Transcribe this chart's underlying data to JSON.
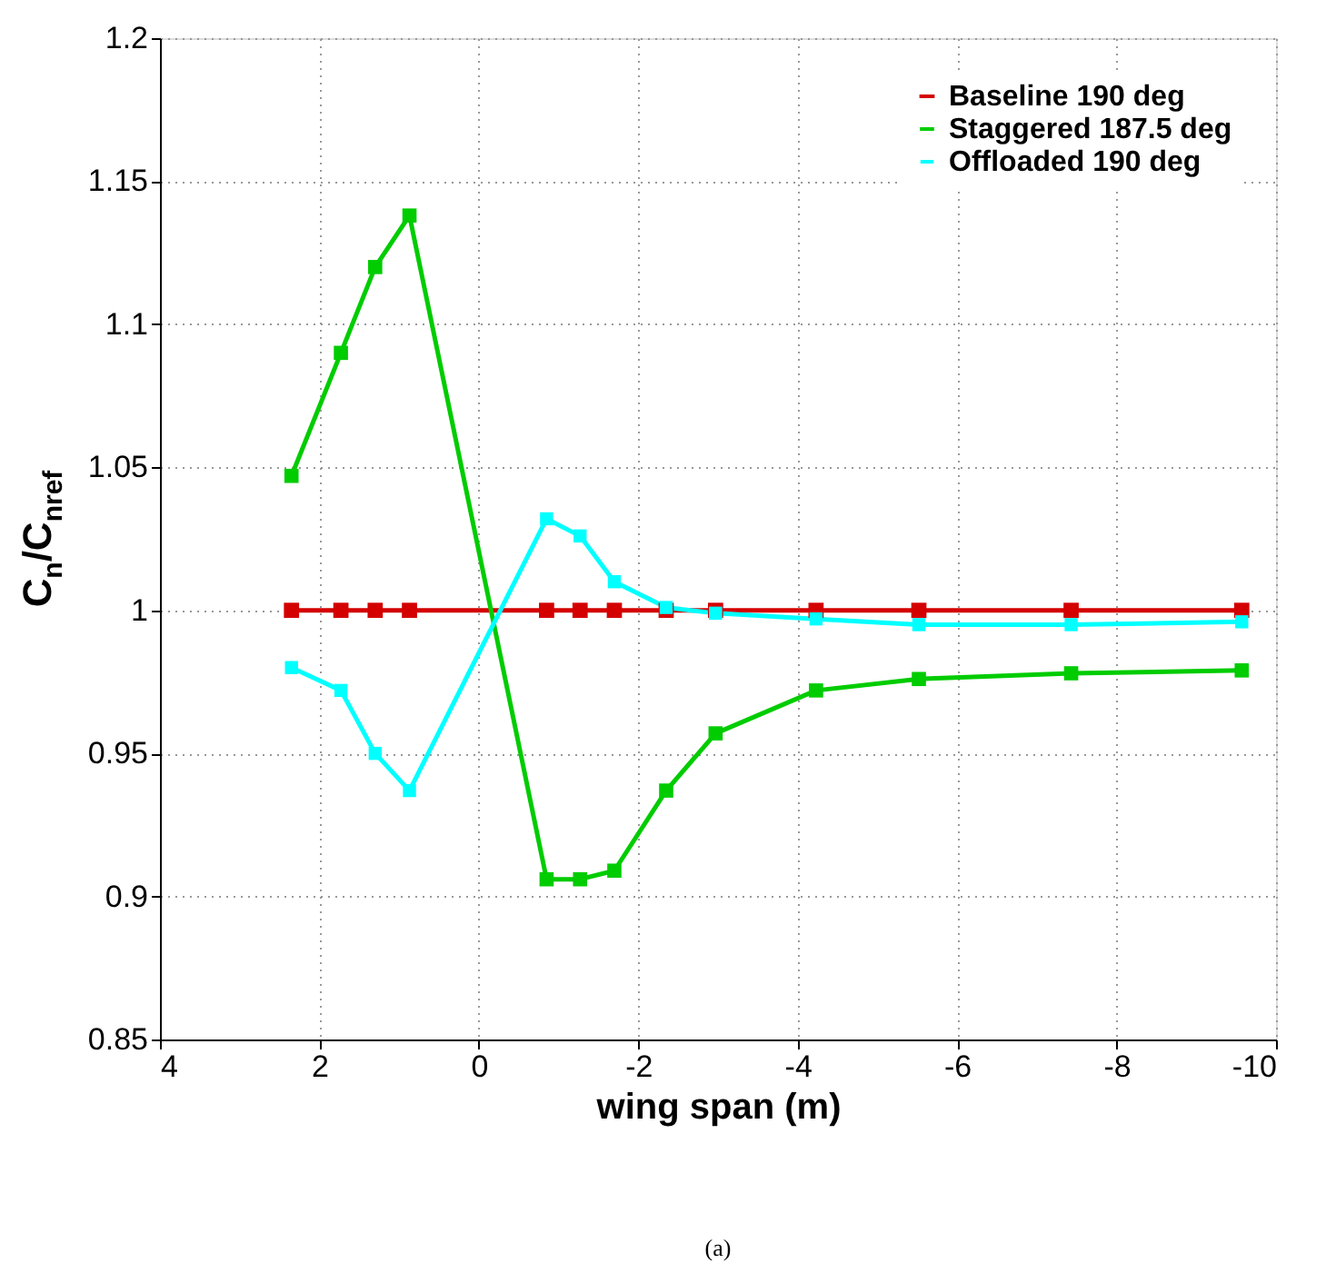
{
  "chart_data": {
    "type": "line",
    "xlabel": "wing span (m)",
    "ylabel": "C$_{n}$/C$_{nref}$",
    "x": [
      2.35,
      1.73,
      1.3,
      0.87,
      -0.85,
      -1.27,
      -1.7,
      -2.35,
      -2.97,
      -4.23,
      -5.52,
      -7.43,
      -9.57
    ],
    "series": [
      {
        "name": "Baseline 190 deg",
        "color": "#d40000",
        "values": [
          1.0,
          1.0,
          1.0,
          1.0,
          1.0,
          1.0,
          1.0,
          1.0,
          1.0,
          1.0,
          1.0,
          1.0,
          1.0
        ]
      },
      {
        "name": "Staggered 187.5 deg",
        "color": "#00cc00",
        "values": [
          1.047,
          1.09,
          1.12,
          1.138,
          0.906,
          0.906,
          0.909,
          0.937,
          0.957,
          0.972,
          0.976,
          0.978,
          0.979
        ]
      },
      {
        "name": "Offloaded 190 deg",
        "color": "#00ffff",
        "values": [
          0.98,
          0.972,
          0.95,
          0.937,
          1.032,
          1.026,
          1.01,
          1.001,
          0.999,
          0.997,
          0.995,
          0.995,
          0.996
        ]
      }
    ],
    "xlim": [
      4,
      -10
    ],
    "xticks": [
      4,
      2,
      0,
      -2,
      -4,
      -6,
      -8,
      -10
    ],
    "ylim": [
      0.85,
      1.2
    ],
    "yticks": [
      0.85,
      0.9,
      0.95,
      1,
      1.05,
      1.1,
      1.15,
      1.2
    ],
    "grid": true,
    "legend": "top right",
    "marker": "square",
    "line_style": "solid",
    "annotations": [
      "(a)"
    ]
  }
}
